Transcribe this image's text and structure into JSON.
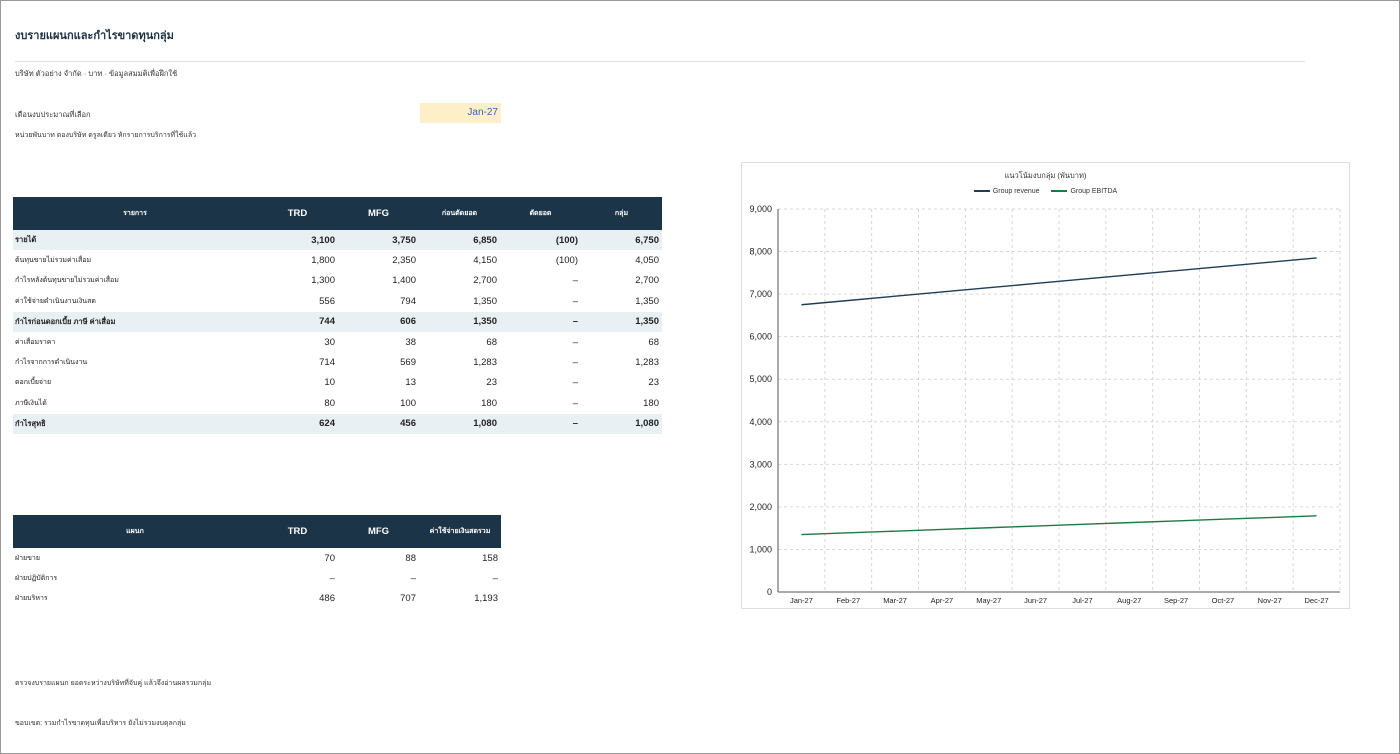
{
  "page": {
    "title": "งบรายแผนกและกำไรขาดทุนกลุ่ม",
    "subtitle": "บริษัท ตัวอย่าง จำกัด · บาท · ข้อมูลสมมติเพื่อฝึกใช้",
    "month_label": "เดือนงบประมาณที่เลือก",
    "month_value": "Jan-27",
    "note": "หน่วยพันบาท ตองบริษัท ตรูลเดียว หักรายการบริการที่ใช้แล้ว",
    "footer_1": "ตรวจงบรายแผนก ยอดระหว่างบริษัทที่จับคู่ แล้วจึงอ่านผลรวมกลุ่ม",
    "footer_2": "ขอบเขต: รวมกำไรขาดทุนเพื่อบริหาร ยังไม่รวมงบดุลกลุ่ม"
  },
  "pl_table": {
    "headers": [
      "รายการ",
      "TRD",
      "MFG",
      "ก่อนตัดยอด",
      "ตัดยอด",
      "กลุ่ม"
    ],
    "rows": [
      {
        "label": "รายได้",
        "trd": "3,100",
        "mfg": "3,750",
        "pre": "6,850",
        "elim": "(100)",
        "group": "6,750",
        "bold": true
      },
      {
        "label": "ต้นทุนขายไม่รวมค่าเสื่อม",
        "trd": "1,800",
        "mfg": "2,350",
        "pre": "4,150",
        "elim": "(100)",
        "group": "4,050"
      },
      {
        "label": "กำไรหลังต้นทุนขายไม่รวมค่าเสื่อม",
        "trd": "1,300",
        "mfg": "1,400",
        "pre": "2,700",
        "elim": "–",
        "group": "2,700"
      },
      {
        "label": "ค่าใช้จ่ายดำเนินงานเงินสด",
        "trd": "556",
        "mfg": "794",
        "pre": "1,350",
        "elim": "–",
        "group": "1,350"
      },
      {
        "label": "กำไรก่อนดอกเบี้ย ภาษี ค่าเสื่อม",
        "trd": "744",
        "mfg": "606",
        "pre": "1,350",
        "elim": "–",
        "group": "1,350",
        "bold": true
      },
      {
        "label": "ค่าเสื่อมราคา",
        "trd": "30",
        "mfg": "38",
        "pre": "68",
        "elim": "–",
        "group": "68"
      },
      {
        "label": "กำไรจากการดำเนินงาน",
        "trd": "714",
        "mfg": "569",
        "pre": "1,283",
        "elim": "–",
        "group": "1,283"
      },
      {
        "label": "ดอกเบี้ยจ่าย",
        "trd": "10",
        "mfg": "13",
        "pre": "23",
        "elim": "–",
        "group": "23"
      },
      {
        "label": "ภาษีเงินได้",
        "trd": "80",
        "mfg": "100",
        "pre": "180",
        "elim": "–",
        "group": "180"
      },
      {
        "label": "กำไรสุทธิ",
        "trd": "624",
        "mfg": "456",
        "pre": "1,080",
        "elim": "–",
        "group": "1,080",
        "bold": true
      }
    ]
  },
  "dept_table": {
    "headers": [
      "แผนก",
      "TRD",
      "MFG",
      "ค่าใช้จ่ายเงินสดรวม"
    ],
    "rows": [
      {
        "label": "ฝ่ายขาย",
        "trd": "70",
        "mfg": "88",
        "total": "158"
      },
      {
        "label": "ฝ่ายปฏิบัติการ",
        "trd": "–",
        "mfg": "–",
        "total": "–"
      },
      {
        "label": "ฝ่ายบริหาร",
        "trd": "486",
        "mfg": "707",
        "total": "1,193"
      }
    ]
  },
  "chart_data": {
    "type": "line",
    "title": "แนวโน้มงบกลุ่ม (พันบาท)",
    "categories": [
      "Jan-27",
      "Feb-27",
      "Mar-27",
      "Apr-27",
      "May-27",
      "Jun-27",
      "Jul-27",
      "Aug-27",
      "Sep-27",
      "Oct-27",
      "Nov-27",
      "Dec-27"
    ],
    "series": [
      {
        "name": "Group revenue",
        "color": "#1f3d56",
        "values": [
          6750,
          6850,
          6950,
          7050,
          7150,
          7250,
          7350,
          7450,
          7550,
          7650,
          7750,
          7850
        ]
      },
      {
        "name": "Group EBITDA",
        "color": "#1e7a45",
        "values": [
          1350,
          1390,
          1430,
          1470,
          1510,
          1550,
          1590,
          1630,
          1670,
          1710,
          1750,
          1790
        ]
      }
    ],
    "ylim": [
      0,
      9000
    ],
    "yticks": [
      "0",
      "1,000",
      "2,000",
      "3,000",
      "4,000",
      "5,000",
      "6,000",
      "7,000",
      "8,000",
      "9,000"
    ],
    "grid": true,
    "legend": "top-center"
  }
}
